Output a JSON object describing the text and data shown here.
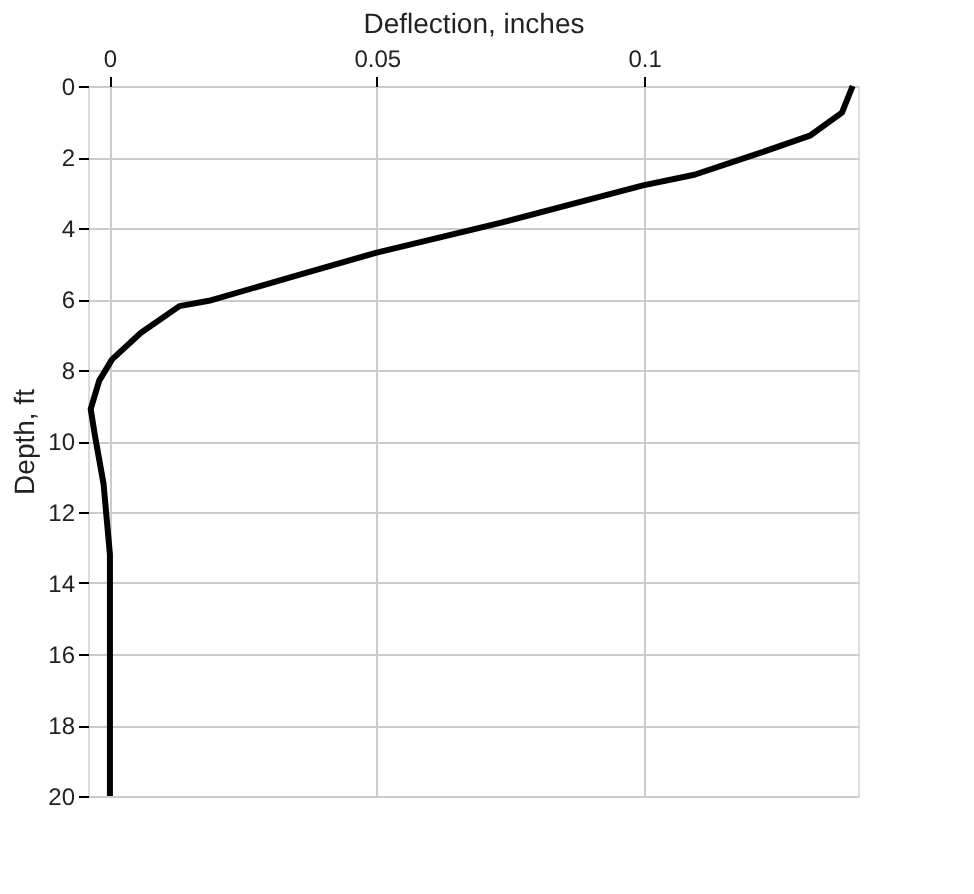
{
  "chart_data": {
    "type": "line",
    "xlabel": "Deflection, inches",
    "ylabel": "Depth, ft",
    "xlim": [
      -0.004,
      0.14
    ],
    "ylim": [
      20,
      0
    ],
    "xticks": [
      0,
      0.05,
      0.1
    ],
    "yticks": [
      0,
      2,
      4,
      6,
      8,
      10,
      12,
      14,
      16,
      18,
      20
    ],
    "grid": true,
    "marker": "none",
    "line_style": "solid",
    "series": [
      {
        "color": "#000000",
        "x": [
          0.139,
          0.137,
          0.131,
          0.1214,
          0.1094,
          0.0998,
          0.0733,
          0.0498,
          0.0348,
          0.0186,
          0.0131,
          0.0059,
          0.0005,
          -0.0019,
          -0.0035,
          -0.0027,
          -0.0011,
          0.0001,
          0.0001
        ],
        "values": [
          0,
          0.75,
          1.4,
          1.9,
          2.5,
          2.8,
          3.85,
          4.7,
          5.35,
          6.05,
          6.2,
          6.95,
          7.7,
          8.3,
          9.1,
          9.85,
          11.2,
          13.2,
          20
        ]
      }
    ]
  }
}
